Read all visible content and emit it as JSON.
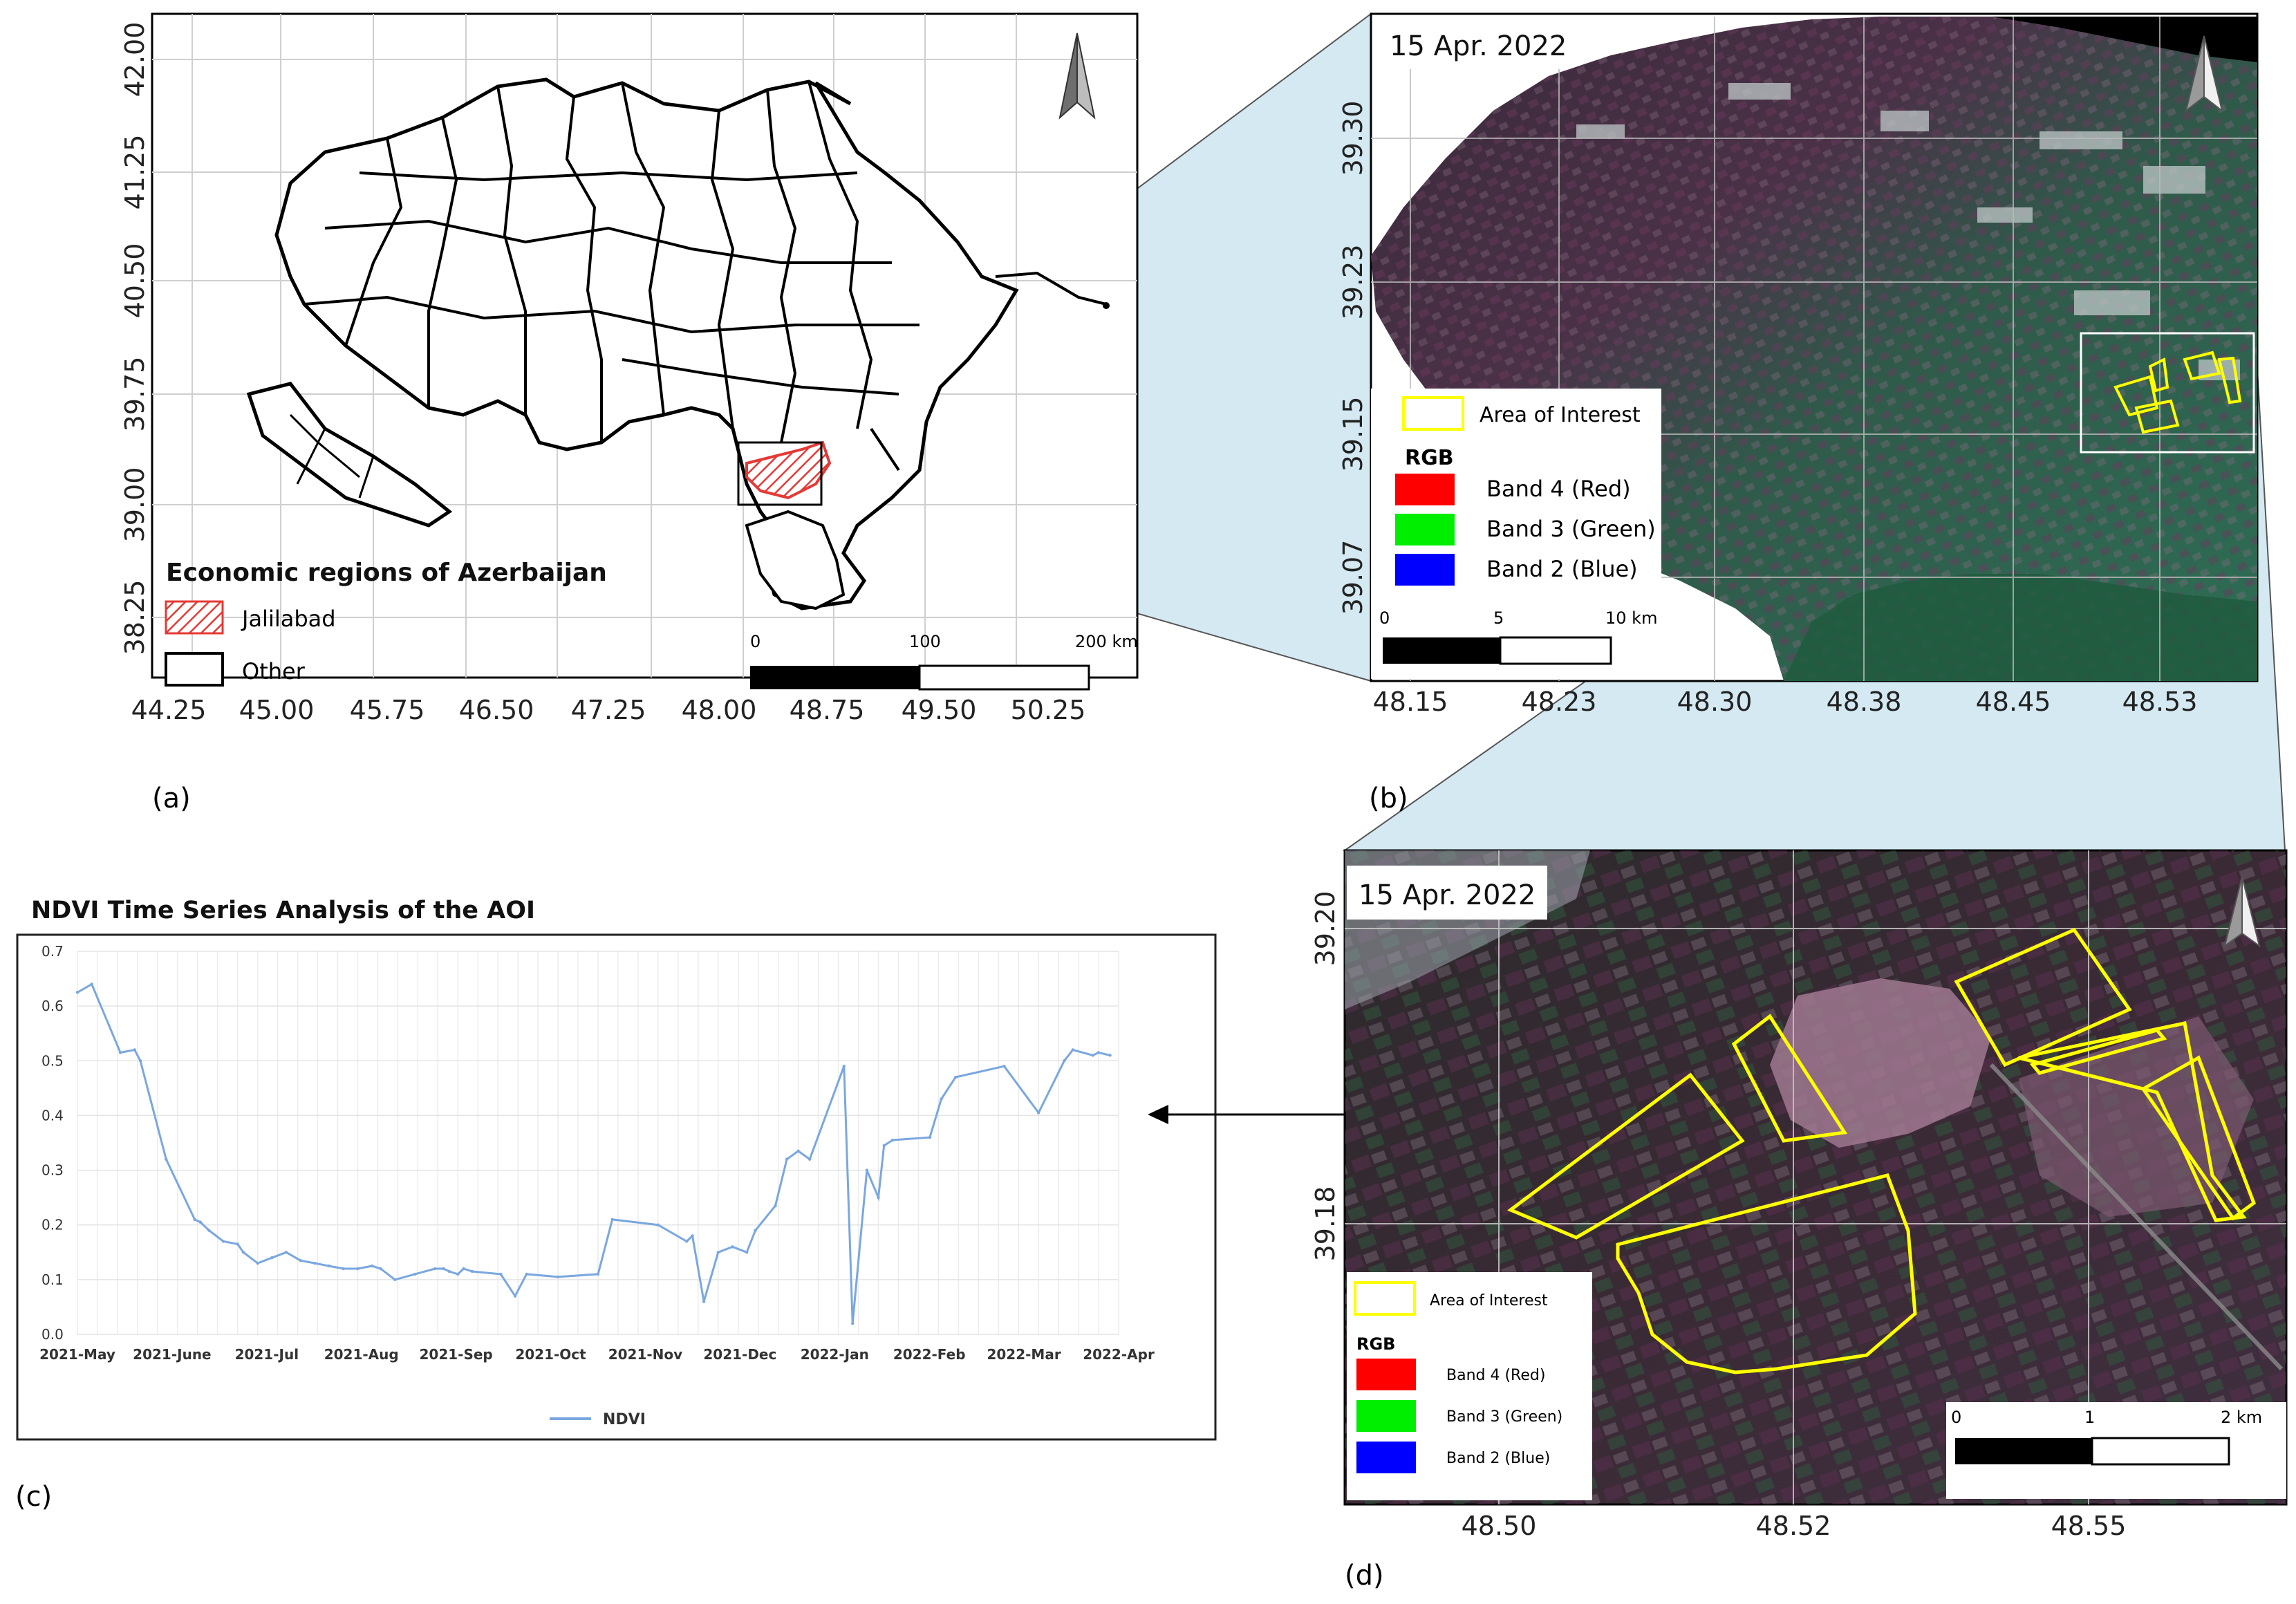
{
  "panel_a": {
    "letter": "(a)",
    "lat_ticks": [
      "42.00",
      "41.25",
      "40.50",
      "39.75",
      "39.00",
      "38.25"
    ],
    "lon_ticks": [
      "44.25",
      "45.00",
      "45.75",
      "46.50",
      "47.25",
      "48.00",
      "48.75",
      "49.50",
      "50.25"
    ],
    "legend": {
      "title": "Economic regions of Azerbaijan",
      "items": [
        {
          "label": "Jalilabad",
          "color": "#e53935",
          "style": "hatched"
        },
        {
          "label": "Other",
          "color": "#000000",
          "style": "outline"
        }
      ]
    },
    "scalebar": {
      "labels": [
        "0",
        "100",
        "200 km"
      ]
    }
  },
  "panel_b": {
    "letter": "(b)",
    "date": "15 Apr. 2022",
    "lat_ticks": [
      "39.30",
      "39.23",
      "39.15",
      "39.07"
    ],
    "lon_ticks": [
      "48.15",
      "48.23",
      "48.30",
      "48.38",
      "48.45",
      "48.53"
    ],
    "legend": {
      "aoi_label": "Area of Interest",
      "rgb_title": "RGB",
      "bands": [
        {
          "label": "Band 4 (Red)",
          "color": "#ff0000"
        },
        {
          "label": "Band 3 (Green)",
          "color": "#00ee00"
        },
        {
          "label": "Band 2 (Blue)",
          "color": "#0000ff"
        }
      ]
    },
    "scalebar": {
      "labels": [
        "0",
        "5",
        "10 km"
      ]
    }
  },
  "panel_c": {
    "letter": "(c)",
    "title": "NDVI Time Series Analysis of the AOI",
    "legend_label": "NDVI"
  },
  "panel_d": {
    "letter": "(d)",
    "date": "15 Apr. 2022",
    "lat_ticks": [
      "39.20",
      "39.18"
    ],
    "lon_ticks": [
      "48.50",
      "48.52",
      "48.55"
    ],
    "legend": {
      "aoi_label": "Area of Interest",
      "rgb_title": "RGB",
      "bands": [
        {
          "label": "Band 4 (Red)",
          "color": "#ff0000"
        },
        {
          "label": "Band 3 (Green)",
          "color": "#00ee00"
        },
        {
          "label": "Band 2 (Blue)",
          "color": "#0000ff"
        }
      ]
    },
    "scalebar": {
      "labels": [
        "0",
        "1",
        "2 km"
      ]
    }
  },
  "colors": {
    "aoi": "#ffff00",
    "ndvi_line": "#7aa7e0",
    "zoom_fill": "#d4e9f2"
  },
  "chart_data": {
    "type": "line",
    "title": "NDVI Time Series Analysis of the AOI",
    "xlabel": "",
    "ylabel": "",
    "ylim": [
      0,
      0.7
    ],
    "y_ticks": [
      "0.0",
      "0.1",
      "0.2",
      "0.3",
      "0.4",
      "0.5",
      "0.6",
      "0.7"
    ],
    "x_ticks": [
      "2021-May",
      "2021-June",
      "2021-Jul",
      "2021-Aug",
      "2021-Sep",
      "2021-Oct",
      "2021-Nov",
      "2021-Dec",
      "2022-Jan",
      "2022-Feb",
      "2022-Mar",
      "2022-Apr"
    ],
    "x_range": [
      "2021-05-01",
      "2022-04-30"
    ],
    "grid": true,
    "legend": "bottom-center",
    "series": [
      {
        "name": "NDVI",
        "x": [
          "2021-05-01",
          "2021-05-06",
          "2021-05-16",
          "2021-05-21",
          "2021-05-23",
          "2021-06-01",
          "2021-06-11",
          "2021-06-13",
          "2021-06-16",
          "2021-06-21",
          "2021-06-26",
          "2021-06-28",
          "2021-07-03",
          "2021-07-08",
          "2021-07-13",
          "2021-07-18",
          "2021-07-23",
          "2021-07-28",
          "2021-08-02",
          "2021-08-07",
          "2021-08-12",
          "2021-08-15",
          "2021-08-20",
          "2021-08-27",
          "2021-09-03",
          "2021-09-06",
          "2021-09-08",
          "2021-09-11",
          "2021-09-13",
          "2021-09-16",
          "2021-09-26",
          "2021-10-01",
          "2021-10-05",
          "2021-10-16",
          "2021-10-30",
          "2021-11-04",
          "2021-11-20",
          "2021-11-30",
          "2021-12-02",
          "2021-12-06",
          "2021-12-11",
          "2021-12-16",
          "2021-12-21",
          "2021-12-24",
          "2021-12-31",
          "2022-01-04",
          "2022-01-08",
          "2022-01-12",
          "2022-01-24",
          "2022-01-27",
          "2022-02-01",
          "2022-02-05",
          "2022-02-07",
          "2022-02-10",
          "2022-02-23",
          "2022-02-27",
          "2022-03-04",
          "2022-03-21",
          "2022-04-02",
          "2022-04-11",
          "2022-04-14",
          "2022-04-21",
          "2022-04-23",
          "2022-04-27"
        ],
        "values": [
          0.625,
          0.64,
          0.515,
          0.52,
          0.5,
          0.32,
          0.21,
          0.205,
          0.19,
          0.17,
          0.165,
          0.15,
          0.13,
          0.14,
          0.15,
          0.135,
          0.13,
          0.125,
          0.12,
          0.12,
          0.125,
          0.12,
          0.1,
          0.11,
          0.12,
          0.12,
          0.115,
          0.11,
          0.12,
          0.115,
          0.11,
          0.07,
          0.11,
          0.105,
          0.11,
          0.21,
          0.2,
          0.17,
          0.18,
          0.06,
          0.15,
          0.16,
          0.15,
          0.19,
          0.235,
          0.32,
          0.335,
          0.32,
          0.49,
          0.02,
          0.3,
          0.25,
          0.345,
          0.355,
          0.36,
          0.43,
          0.47,
          0.49,
          0.405,
          0.5,
          0.52,
          0.51,
          0.515,
          0.51
        ]
      }
    ]
  }
}
